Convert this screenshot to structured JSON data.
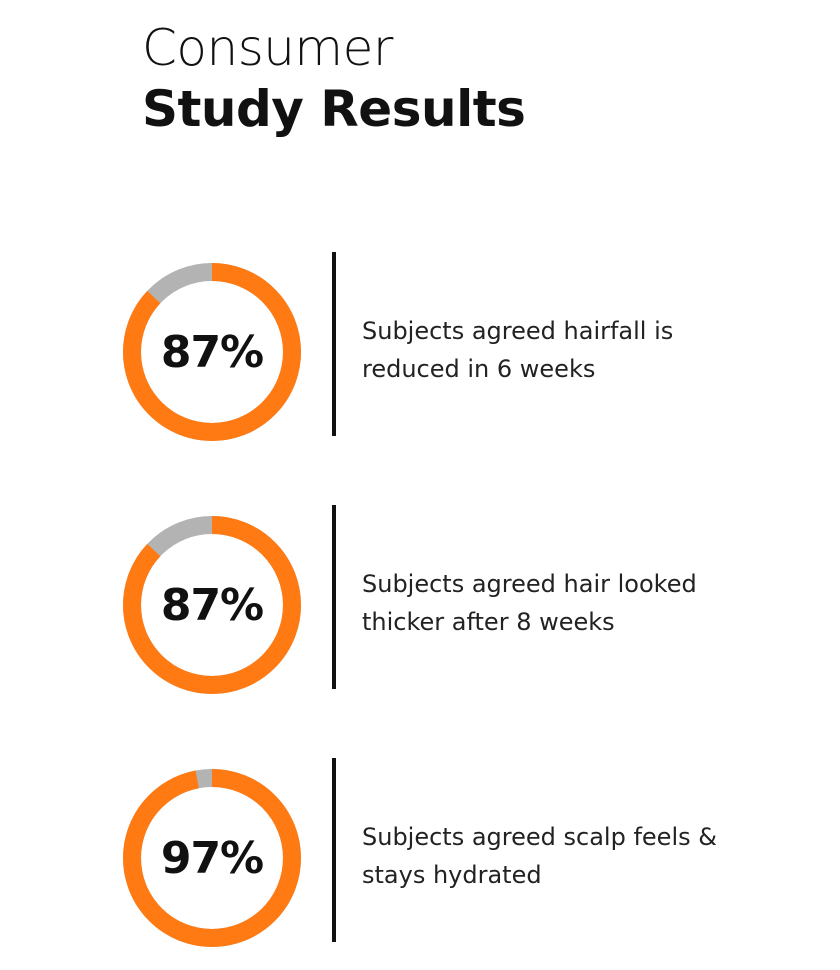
{
  "header": {
    "title_line1": "Consumer",
    "title_line2": "Study Results"
  },
  "colors": {
    "accent": "#FF7A12",
    "track": "#B3B3B3"
  },
  "chart_data": {
    "type": "donut",
    "items": [
      {
        "value": 87,
        "label": "87%",
        "caption_lines": [
          "Subjects agreed hairfall is",
          "reduced in 6 weeks"
        ]
      },
      {
        "value": 87,
        "label": "87%",
        "caption_lines": [
          "Subjects agreed hair looked",
          "thicker after 8 weeks"
        ]
      },
      {
        "value": 97,
        "label": "97%",
        "caption_lines": [
          "Subjects agreed scalp feels &",
          "stays hydrated"
        ]
      }
    ]
  }
}
